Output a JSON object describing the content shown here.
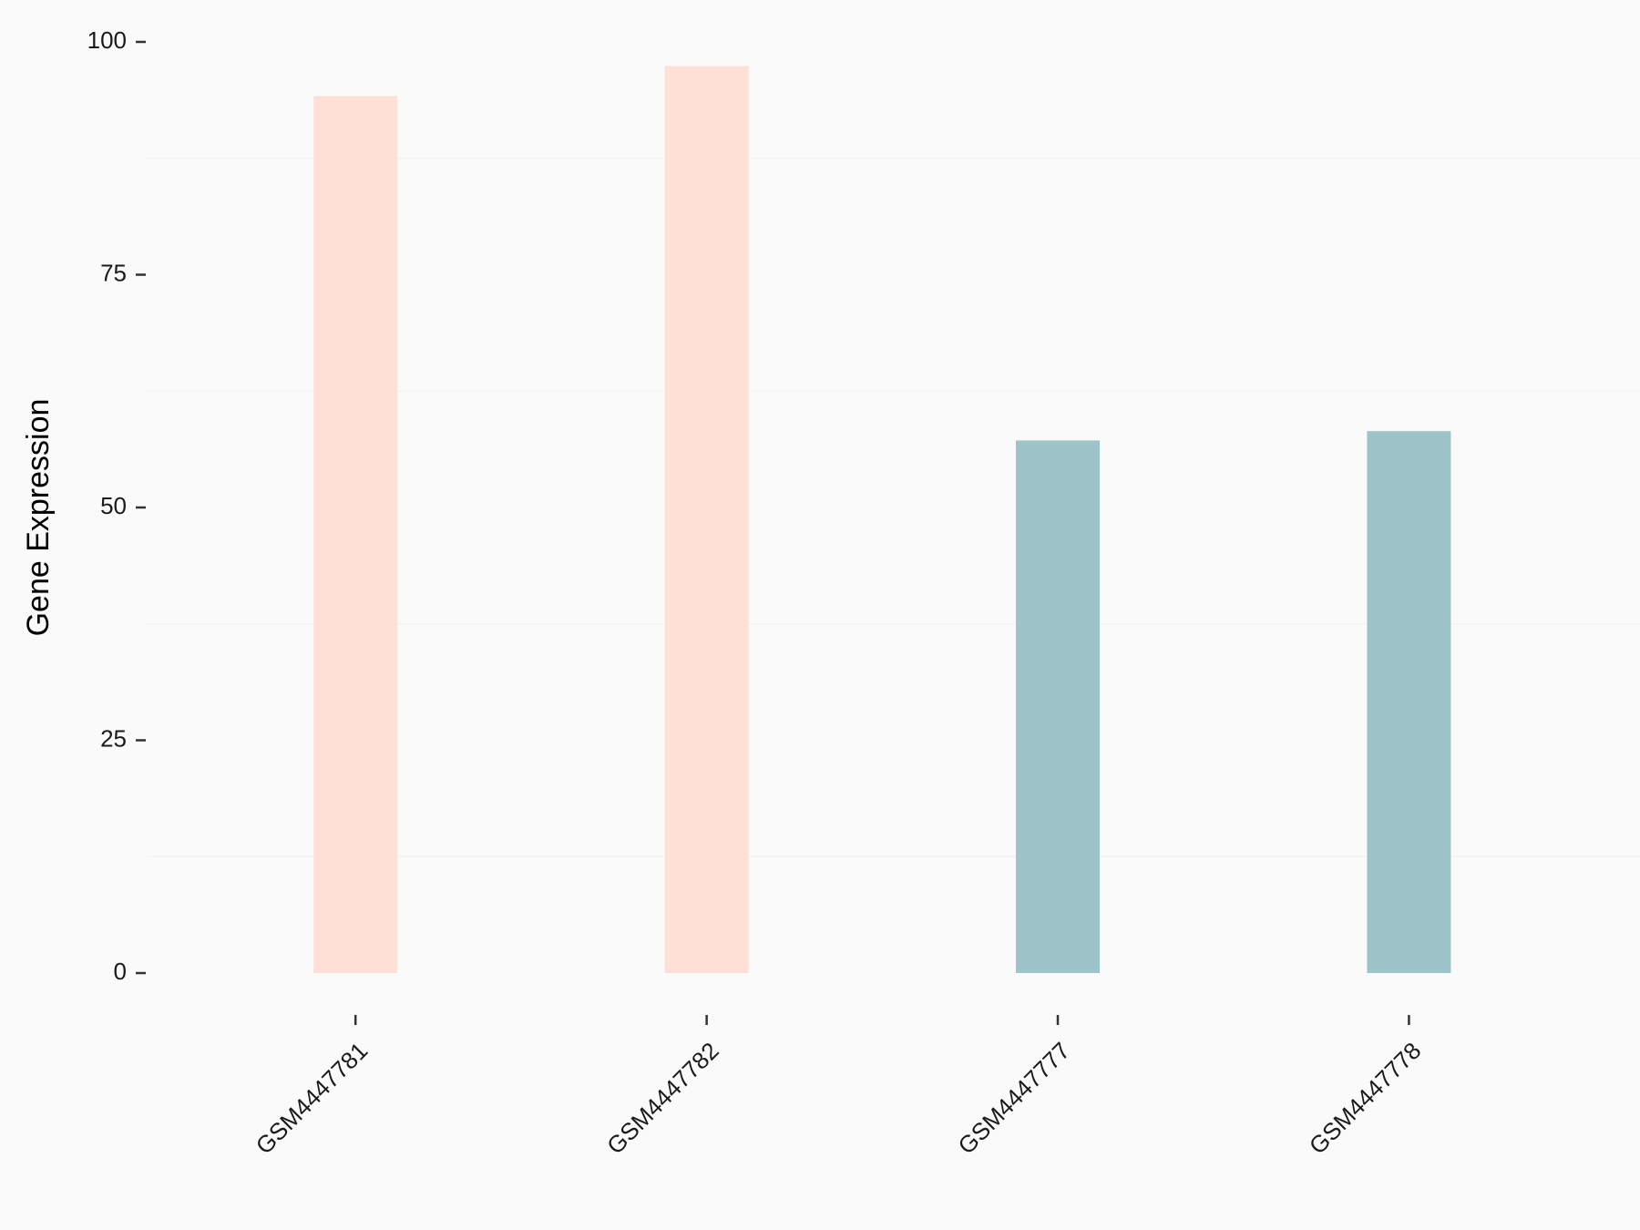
{
  "chart_data": {
    "type": "bar",
    "y_label": "Gene Expression",
    "categories": [
      "GSM4447781",
      "GSM4447782",
      "GSM4447777",
      "GSM4447778"
    ],
    "values": [
      94.2,
      97.4,
      57.2,
      58.2
    ],
    "colors": [
      "#ffe0d6",
      "#ffe0d6",
      "#9dc4c8",
      "#9dc4c8"
    ],
    "ylim": [
      0,
      100
    ],
    "yticks": [
      0,
      25,
      50,
      75,
      100
    ],
    "grid": true
  }
}
